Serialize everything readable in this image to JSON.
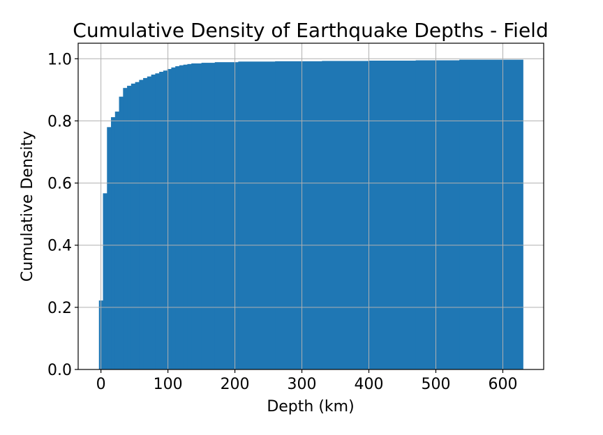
{
  "chart_data": {
    "type": "bar",
    "title": "Cumulative Density of Earthquake Depths - Field",
    "xlabel": "Depth (km)",
    "ylabel": "Cumulative Density",
    "xlim": [
      -34,
      661
    ],
    "ylim": [
      0,
      1.05
    ],
    "grid": true,
    "color": "#1f77b4",
    "x_ticks": [
      0,
      100,
      200,
      300,
      400,
      500,
      600
    ],
    "y_ticks": [
      0.0,
      0.2,
      0.4,
      0.6,
      0.8,
      1.0
    ],
    "x_tick_labels": [
      "0",
      "100",
      "200",
      "300",
      "400",
      "500",
      "600"
    ],
    "y_tick_labels": [
      "0.0",
      "0.2",
      "0.4",
      "0.6",
      "0.8",
      "1.0"
    ],
    "bins": [
      {
        "x0": -3,
        "x1": 3,
        "y": 0.222
      },
      {
        "x0": 3,
        "x1": 9,
        "y": 0.567
      },
      {
        "x0": 9,
        "x1": 15,
        "y": 0.78
      },
      {
        "x0": 15,
        "x1": 21,
        "y": 0.812
      },
      {
        "x0": 21,
        "x1": 27,
        "y": 0.83
      },
      {
        "x0": 27,
        "x1": 33,
        "y": 0.878
      },
      {
        "x0": 33,
        "x1": 39,
        "y": 0.906
      },
      {
        "x0": 39,
        "x1": 45,
        "y": 0.913
      },
      {
        "x0": 45,
        "x1": 51,
        "y": 0.92
      },
      {
        "x0": 51,
        "x1": 57,
        "y": 0.925
      },
      {
        "x0": 57,
        "x1": 63,
        "y": 0.932
      },
      {
        "x0": 63,
        "x1": 69,
        "y": 0.938
      },
      {
        "x0": 69,
        "x1": 75,
        "y": 0.943
      },
      {
        "x0": 75,
        "x1": 81,
        "y": 0.949
      },
      {
        "x0": 81,
        "x1": 87,
        "y": 0.953
      },
      {
        "x0": 87,
        "x1": 93,
        "y": 0.958
      },
      {
        "x0": 93,
        "x1": 99,
        "y": 0.962
      },
      {
        "x0": 99,
        "x1": 105,
        "y": 0.967
      },
      {
        "x0": 105,
        "x1": 111,
        "y": 0.972
      },
      {
        "x0": 111,
        "x1": 117,
        "y": 0.976
      },
      {
        "x0": 117,
        "x1": 123,
        "y": 0.979
      },
      {
        "x0": 123,
        "x1": 129,
        "y": 0.981
      },
      {
        "x0": 129,
        "x1": 135,
        "y": 0.983
      },
      {
        "x0": 135,
        "x1": 150,
        "y": 0.985
      },
      {
        "x0": 150,
        "x1": 170,
        "y": 0.987
      },
      {
        "x0": 170,
        "x1": 205,
        "y": 0.989
      },
      {
        "x0": 205,
        "x1": 260,
        "y": 0.991
      },
      {
        "x0": 260,
        "x1": 330,
        "y": 0.992
      },
      {
        "x0": 330,
        "x1": 400,
        "y": 0.993
      },
      {
        "x0": 400,
        "x1": 470,
        "y": 0.994
      },
      {
        "x0": 470,
        "x1": 535,
        "y": 0.995
      },
      {
        "x0": 535,
        "x1": 630,
        "y": 0.997
      }
    ]
  }
}
